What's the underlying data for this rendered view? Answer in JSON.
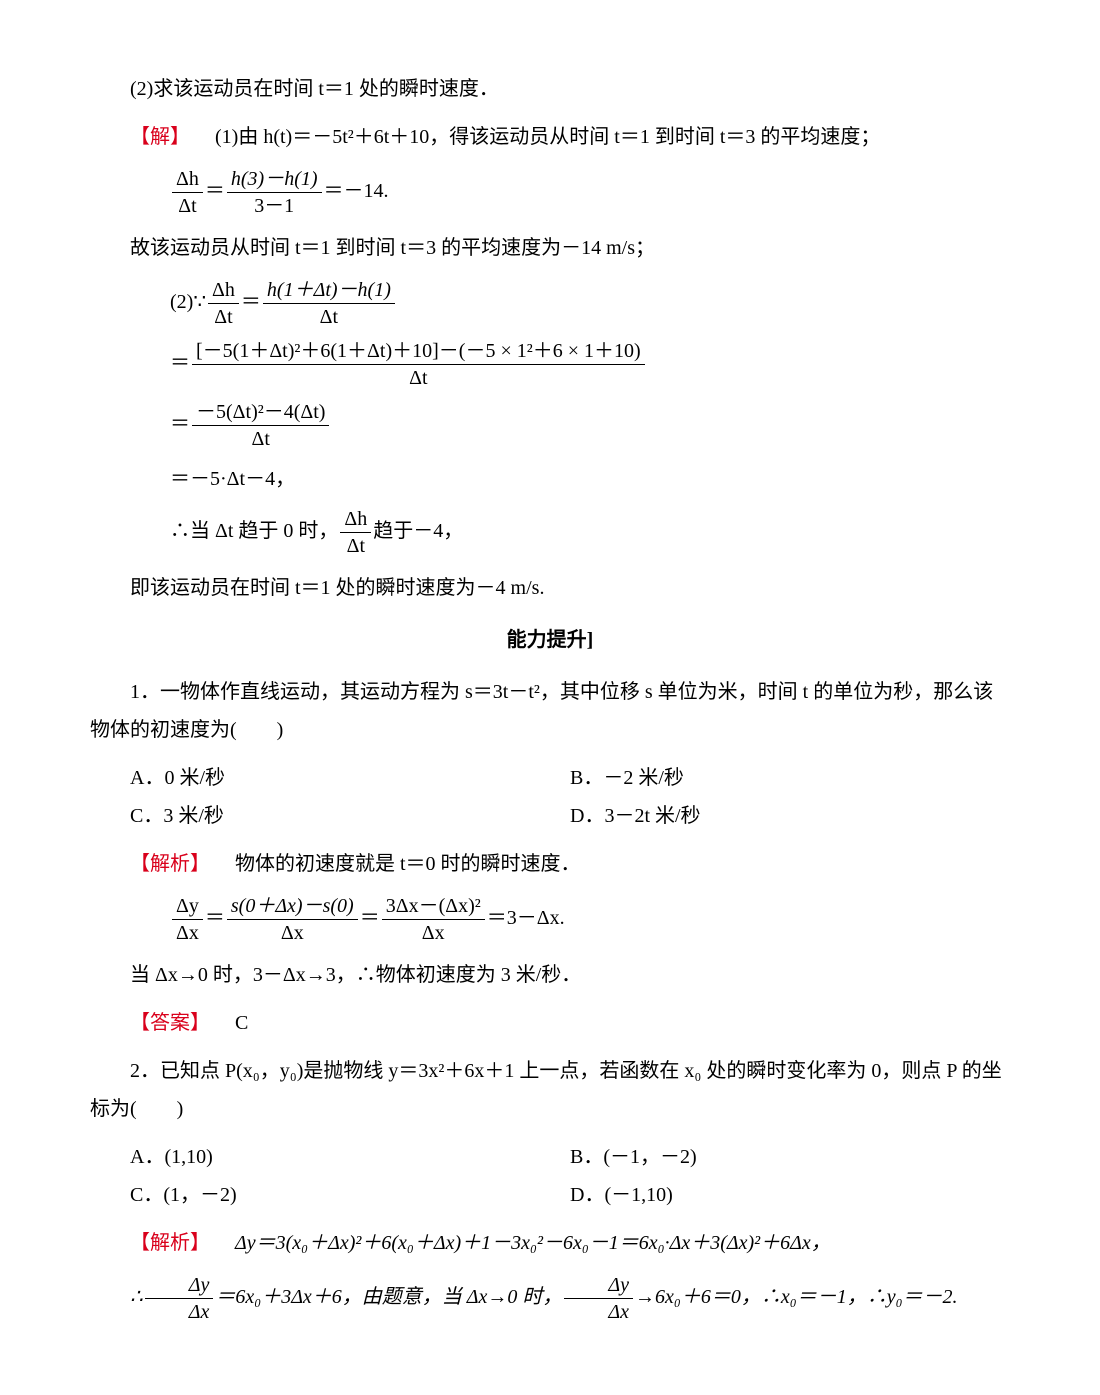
{
  "colors": {
    "accent": "#d9001b",
    "text": "#000000",
    "bg": "#ffffff"
  },
  "typography": {
    "body_font": "SimSun / Songti SC",
    "math_font": "Times New Roman",
    "size_pt": 20,
    "line_height": 1.9
  },
  "top": {
    "p1": "(2)求该运动员在时间 t＝1 处的瞬时速度．",
    "solve_label": "【解】",
    "p2": "(1)由 h(t)＝－5t²＋6t＋10，得该运动员从时间 t＝1 到时间 t＝3 的平均速度；",
    "eq1_lhs_num": "Δh",
    "eq1_lhs_den": "Δt",
    "eq1_mid_num": "h(3)－h(1)",
    "eq1_mid_den": "3－1",
    "eq1_rhs": "＝－14.",
    "p3": "故该运动员从时间 t＝1 到时间 t＝3 的平均速度为－14 m/s；",
    "eq2_pref": "(2)∵",
    "eq2_lhs_num": "Δh",
    "eq2_lhs_den": "Δt",
    "eq2_mid_num": "h(1＋Δt)－h(1)",
    "eq2_mid_den": "Δt",
    "eq3_num": "[－5(1＋Δt)²＋6(1＋Δt)＋10]－(－5 × 1²＋6 × 1＋10)",
    "eq3_den": "Δt",
    "eq4_num": "－5(Δt)²－4(Δt)",
    "eq4_den": "Δt",
    "eq5": "＝－5·Δt－4，",
    "p4a": "∴当 Δt 趋于 0 时，",
    "p4_num": "Δh",
    "p4_den": "Δt",
    "p4b": "趋于－4，",
    "p5": "即该运动员在时间 t＝1 处的瞬时速度为－4 m/s."
  },
  "section_title": "能力提升]",
  "q1": {
    "stem_a": "1．一物体作直线运动，其运动方程为 s＝3t－t²，其中位移 s 单位为米，时间 t 的单位为秒，那么该物体的初速度为(　　)",
    "optA": "A．0 米/秒",
    "optB": "B．－2 米/秒",
    "optC": "C．3 米/秒",
    "optD": "D．3－2t 米/秒",
    "analysis_label": "【解析】",
    "analysis_text": "物体的初速度就是 t＝0 时的瞬时速度．",
    "eq_lhs_num": "Δy",
    "eq_lhs_den": "Δx",
    "eq_m1_num": "s(0＋Δx)－s(0)",
    "eq_m1_den": "Δx",
    "eq_m2_num": "3Δx－(Δx)²",
    "eq_m2_den": "Δx",
    "eq_rhs": "＝3－Δx.",
    "limit_line": "当 Δx→0 时，3－Δx→3，∴物体初速度为 3 米/秒．",
    "answer_label": "【答案】",
    "answer_value": "C"
  },
  "q2": {
    "stem": "2．已知点 P(x₀，y₀)是抛物线 y＝3x²＋6x＋1 上一点，若函数在 x₀ 处的瞬时变化率为 0，则点 P 的坐标为(　　)",
    "optA": "A．(1,10)",
    "optB": "B．(－1，－2)",
    "optC": "C．(1，－2)",
    "optD": "D．(－1,10)",
    "analysis_label": "【解析】",
    "analysis_eq": "Δy＝3(x₀＋Δx)²＋6(x₀＋Δx)＋1－3x₀²－6x₀－1＝6x₀·Δx＋3(Δx)²＋6Δx，",
    "concl_pre": "∴",
    "concl_num": "Δy",
    "concl_den": "Δx",
    "concl_mid": "＝6x₀＋3Δx＋6，由题意，当 Δx→0 时，",
    "concl_num2": "Δy",
    "concl_den2": "Δx",
    "concl_tail": "→6x₀＋6＝0，∴x₀＝－1，∴y₀＝－2."
  }
}
